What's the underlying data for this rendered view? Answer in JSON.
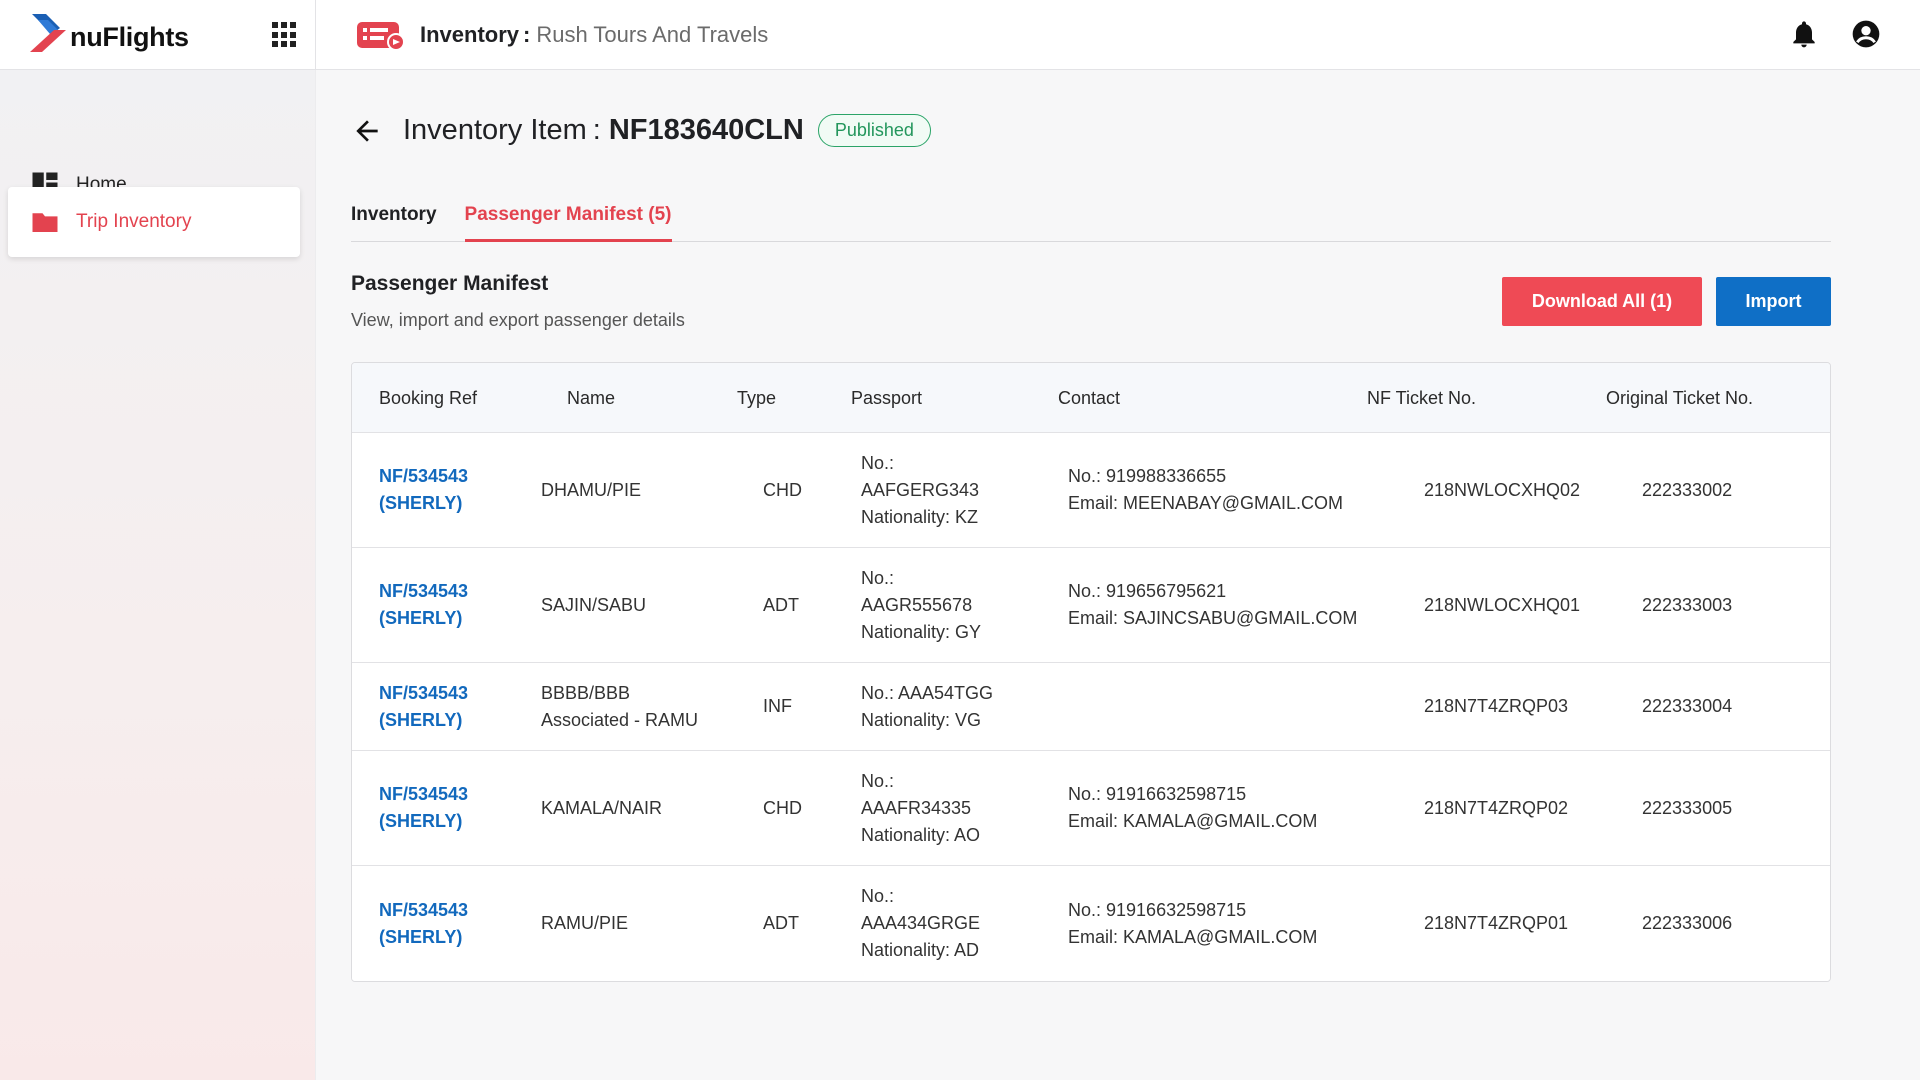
{
  "app": {
    "logo_text": "nuFlights",
    "header_label": "Inventory",
    "header_sep": ":",
    "header_value": "Rush Tours And Travels"
  },
  "sidebar": {
    "items": [
      {
        "label": "Home",
        "icon": "dashboard-icon"
      },
      {
        "label": "Trip Inventory",
        "icon": "folder-icon",
        "active": true
      }
    ]
  },
  "page": {
    "title_label": "Inventory Item",
    "title_sep": ":",
    "title_id": "NF183640CLN",
    "status": "Published"
  },
  "tabs": [
    {
      "label": "Inventory"
    },
    {
      "label": "Passenger Manifest (5)",
      "active": true
    }
  ],
  "section": {
    "title": "Passenger Manifest",
    "subtitle": "View, import and export passenger details",
    "download_label": "Download All (1)",
    "import_label": "Import"
  },
  "table": {
    "headers": [
      "Booking Ref",
      "Name",
      "Type",
      "Passport",
      "Contact",
      "NF Ticket No.",
      "Original Ticket No."
    ],
    "rows": [
      {
        "ref1": "NF/534543",
        "ref2": "(SHERLY)",
        "name1": "DHAMU/PIE",
        "name2": "",
        "type": "CHD",
        "pass1": "No.:",
        "pass2": "AAFGERG343",
        "pass3": "Nationality: KZ",
        "contact1": "No.: 919988336655",
        "contact2": "Email: MEENABAY@GMAIL.COM",
        "nf": "218NWLOCXHQ02",
        "orig": "222333002"
      },
      {
        "ref1": "NF/534543",
        "ref2": "(SHERLY)",
        "name1": "SAJIN/SABU",
        "name2": "",
        "type": "ADT",
        "pass1": "No.:",
        "pass2": "AAGR555678",
        "pass3": "Nationality: GY",
        "contact1": "No.: 919656795621",
        "contact2": "Email: SAJINCSABU@GMAIL.COM",
        "nf": "218NWLOCXHQ01",
        "orig": "222333003"
      },
      {
        "ref1": "NF/534543",
        "ref2": "(SHERLY)",
        "name1": "BBBB/BBB",
        "name2": "Associated - RAMU",
        "type": "INF",
        "pass1": "No.: AAA54TGG",
        "pass2": "Nationality: VG",
        "pass3": "",
        "contact1": "",
        "contact2": "",
        "nf": "218N7T4ZRQP03",
        "orig": "222333004"
      },
      {
        "ref1": "NF/534543",
        "ref2": "(SHERLY)",
        "name1": "KAMALA/NAIR",
        "name2": "",
        "type": "CHD",
        "pass1": "No.:",
        "pass2": "AAAFR34335",
        "pass3": "Nationality: AO",
        "contact1": "No.: 91916632598715",
        "contact2": "Email: KAMALA@GMAIL.COM",
        "nf": "218N7T4ZRQP02",
        "orig": "222333005"
      },
      {
        "ref1": "NF/534543",
        "ref2": "(SHERLY)",
        "name1": "RAMU/PIE",
        "name2": "",
        "type": "ADT",
        "pass1": "No.:",
        "pass2": "AAA434GRGE",
        "pass3": "Nationality: AD",
        "contact1": "No.: 91916632598715",
        "contact2": "Email: KAMALA@GMAIL.COM",
        "nf": "218N7T4ZRQP01",
        "orig": "222333006"
      }
    ]
  },
  "colors": {
    "brand_red": "#e3434f",
    "brand_blue": "#0f6fc6",
    "status_green": "#23965c"
  }
}
